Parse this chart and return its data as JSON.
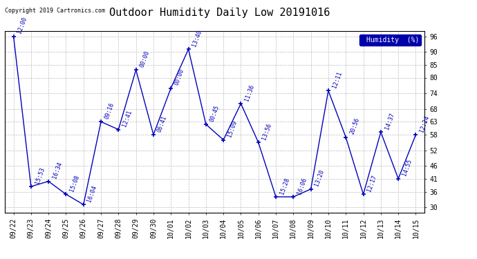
{
  "title": "Outdoor Humidity Daily Low 20191016",
  "copyright": "Copyright 2019 Cartronics.com",
  "legend_label": "Humidity  (%)",
  "x_labels": [
    "09/22",
    "09/23",
    "09/24",
    "09/25",
    "09/26",
    "09/27",
    "09/28",
    "09/29",
    "09/30",
    "10/01",
    "10/02",
    "10/03",
    "10/04",
    "10/05",
    "10/06",
    "10/07",
    "10/08",
    "10/09",
    "10/10",
    "10/11",
    "10/12",
    "10/13",
    "10/14",
    "10/15"
  ],
  "y_values": [
    96,
    38,
    40,
    35,
    31,
    63,
    60,
    83,
    58,
    76,
    91,
    62,
    56,
    70,
    55,
    34,
    34,
    37,
    75,
    57,
    35,
    59,
    41,
    58
  ],
  "time_labels": [
    "12:00",
    "15:53",
    "16:34",
    "15:08",
    "16:04",
    "09:16",
    "12:41",
    "00:00",
    "06:41",
    "00:00",
    "13:40",
    "00:45",
    "15:09",
    "11:36",
    "13:56",
    "15:28",
    "16:06",
    "13:20",
    "12:11",
    "20:56",
    "12:17",
    "14:37",
    "14:55",
    "12:24"
  ],
  "line_color": "#0000BB",
  "marker_color": "#0000BB",
  "bg_color": "#FFFFFF",
  "plot_bg_color": "#FFFFFF",
  "grid_color": "#BBBBBB",
  "y_ticks": [
    30,
    36,
    41,
    46,
    52,
    58,
    63,
    68,
    74,
    80,
    85,
    90,
    96
  ],
  "y_min": 28,
  "y_max": 98,
  "title_fontsize": 11,
  "tick_fontsize": 7,
  "annot_fontsize": 6,
  "copyright_fontsize": 6
}
